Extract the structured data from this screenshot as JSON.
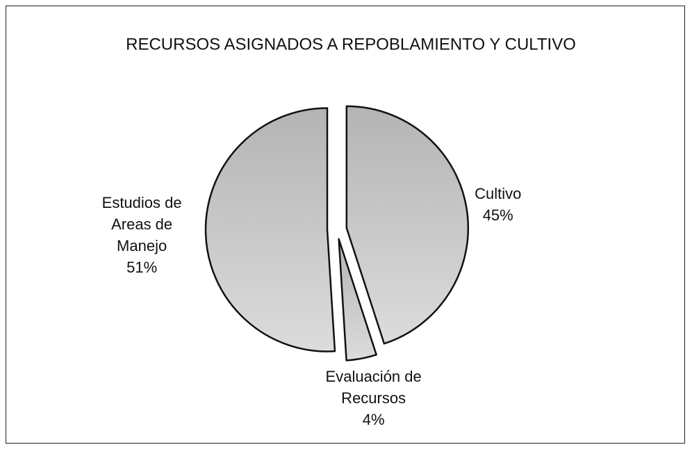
{
  "chart_data": {
    "type": "pie",
    "title": "RECURSOS ASIGNADOS A REPOBLAMIENTO Y CULTIVO",
    "categories": [
      "Cultivo",
      "Evaluación de Recursos",
      "Estudios de Areas de Manejo"
    ],
    "values": [
      45,
      4,
      51
    ],
    "value_labels": [
      "45%",
      "4%",
      "51%"
    ],
    "color": "#c8c8c8"
  }
}
